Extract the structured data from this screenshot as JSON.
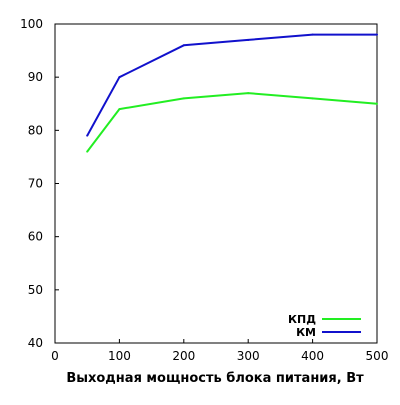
{
  "chart_data": {
    "type": "line",
    "title": "",
    "xlabel": "Выходная мощность блока питания, Вт",
    "ylabel": "",
    "xlim": [
      0,
      500
    ],
    "ylim": [
      40,
      100
    ],
    "xticks": [
      0,
      100,
      200,
      300,
      400,
      500
    ],
    "yticks": [
      40,
      50,
      60,
      70,
      80,
      90,
      100
    ],
    "grid": false,
    "legend_position": "bottom-right",
    "x": [
      50,
      100,
      200,
      300,
      400,
      500
    ],
    "series": [
      {
        "name": "КПД",
        "color": "#22ee22",
        "values": [
          76,
          84,
          86,
          87,
          86,
          85
        ]
      },
      {
        "name": "КМ",
        "color": "#1111cc",
        "values": [
          79,
          90,
          96,
          97,
          98,
          98
        ]
      }
    ]
  }
}
